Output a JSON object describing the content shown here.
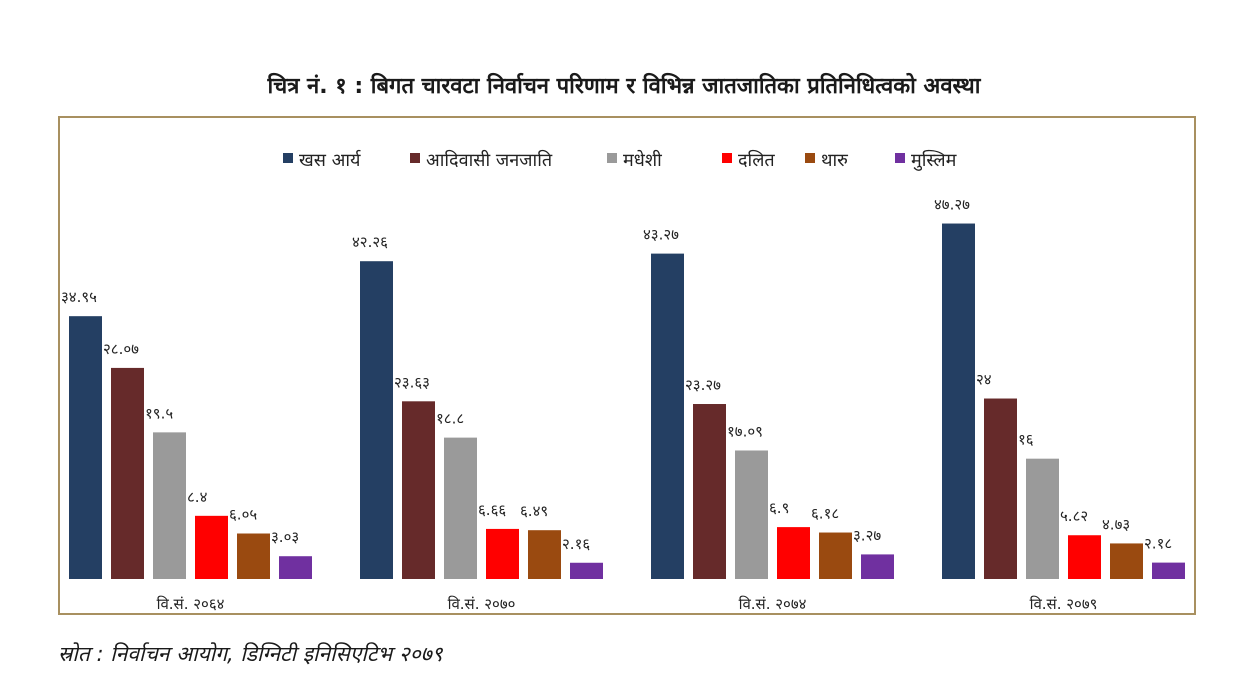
{
  "title": "चित्र नं. १ : बिगत चारवटा निर्वाचन परिणाम र विभिन्न जातजातिका प्रतिनिधित्वको अवस्था",
  "source": "स्रोत : निर्वाचन आयोग, डिग्निटी इनिसिएटिभ २०७९",
  "chart_data": {
    "type": "bar",
    "title": "चित्र नं. १ : बिगत चारवटा निर्वाचन परिणाम र विभिन्न जातजातिका प्रतिनिधित्वको अवस्था",
    "xlabel": "",
    "ylabel": "",
    "ylim": [
      0,
      50
    ],
    "grid": false,
    "legend_position": "top-center",
    "categories": [
      "वि.सं. २०६४",
      "वि.सं. २०७०",
      "वि.सं. २०७४",
      "वि.सं. २०७९"
    ],
    "series": [
      {
        "name": "खस आर्य",
        "color": "#243f63",
        "values": [
          34.95,
          42.26,
          43.27,
          47.27
        ],
        "labels": [
          "३४.९५",
          "४२.२६",
          "४३.२७",
          "४७.२७"
        ]
      },
      {
        "name": "आदिवासी जनजाति",
        "color": "#662a2a",
        "values": [
          28.07,
          23.63,
          23.27,
          24
        ],
        "labels": [
          "२८.०७",
          "२३.६३",
          "२३.२७",
          "२४"
        ]
      },
      {
        "name": "मधेशी",
        "color": "#9a9a9a",
        "values": [
          19.5,
          18.8,
          17.09,
          16
        ],
        "labels": [
          "१९.५",
          "१८.८",
          "१७.०९",
          "१६"
        ]
      },
      {
        "name": "दलित",
        "color": "#ff0000",
        "values": [
          8.4,
          6.66,
          6.9,
          5.82
        ],
        "labels": [
          "८.४",
          "६.६६",
          "६.९",
          "५.८२"
        ]
      },
      {
        "name": "थारु",
        "color": "#9a4a10",
        "values": [
          6.05,
          6.49,
          6.18,
          4.73
        ],
        "labels": [
          "६.०५",
          "६.४९",
          "६.१८",
          "४.७३"
        ]
      },
      {
        "name": "मुस्लिम",
        "color": "#7030a0",
        "values": [
          3.03,
          2.16,
          3.27,
          2.18
        ],
        "labels": [
          "३.०३",
          "२.१६",
          "३.२७",
          "२.१८"
        ]
      }
    ]
  }
}
